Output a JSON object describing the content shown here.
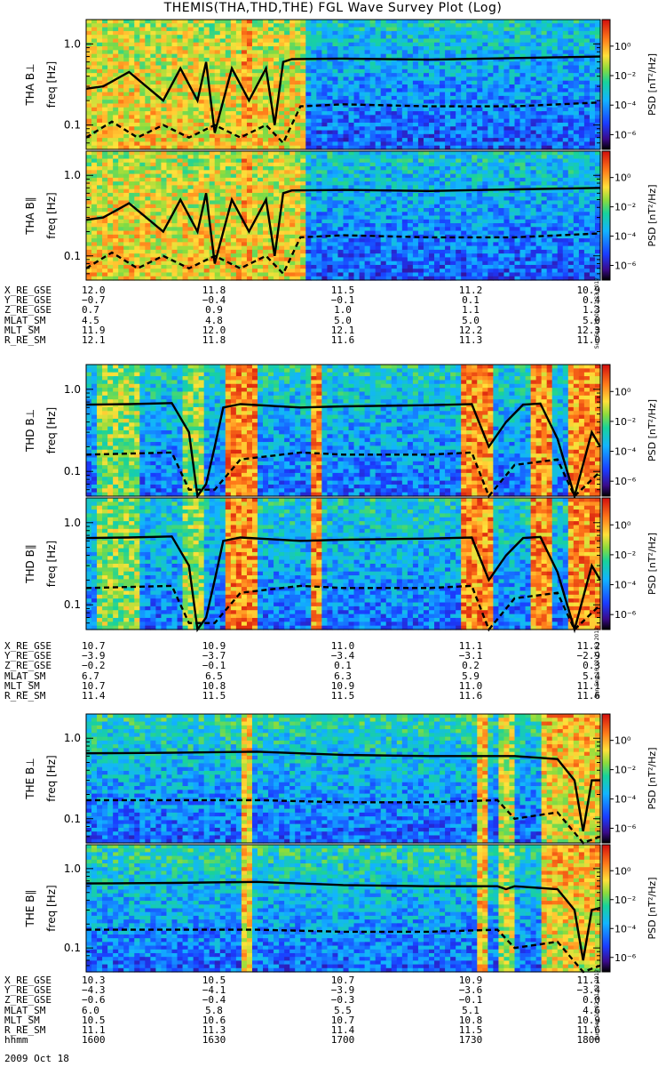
{
  "title": "THEMIS(THA,THD,THE) FGL Wave Survey Plot (Log)",
  "date_label": "2009 Oct 18",
  "colorbar": {
    "label": "PSD [nT²/Hz]",
    "ticks": [
      {
        "exp": 0,
        "text": "10⁰"
      },
      {
        "exp": -2,
        "text": "10⁻²"
      },
      {
        "exp": -4,
        "text": "10⁻⁴"
      },
      {
        "exp": -6,
        "text": "10⁻⁶"
      }
    ],
    "range_log": [
      -7,
      1.8
    ]
  },
  "freq_axis": {
    "label": "freq [Hz]",
    "range": [
      0.05,
      2.0
    ],
    "scale": "log",
    "ticks": [
      "1.0",
      "0.1"
    ]
  },
  "stamp": "Sun Sep 16 02:21:23 2012",
  "panels": [
    {
      "id": "tha-bperp",
      "ylabel": "THA B⊥",
      "noise": 0.8
    },
    {
      "id": "tha-bpar",
      "ylabel": "THA B∥",
      "noise": 0.7
    },
    {
      "id": "thd-bperp",
      "ylabel": "THD B⊥",
      "noise": 0.8
    },
    {
      "id": "thd-bpar",
      "ylabel": "THD B∥",
      "noise": 0.7
    },
    {
      "id": "the-bperp",
      "ylabel": "THE B⊥",
      "noise": 0.8
    },
    {
      "id": "the-bpar",
      "ylabel": "THE B∥",
      "noise": 0.7
    }
  ],
  "ephemeris": [
    {
      "id": "tha",
      "rows": [
        {
          "label": "X_RE_GSE",
          "values": [
            "12.0",
            "11.8",
            "11.5",
            "11.2",
            "10.9"
          ]
        },
        {
          "label": "Y_RE_GSE",
          "values": [
            "−0.7",
            "−0.4",
            "−0.1",
            "0.1",
            "0.4"
          ]
        },
        {
          "label": "Z_RE_GSE",
          "values": [
            "0.7",
            "0.9",
            "1.0",
            "1.1",
            "1.3"
          ]
        },
        {
          "label": "MLAT_SM",
          "values": [
            "4.5",
            "4.8",
            "5.0",
            "5.0",
            "5.0"
          ]
        },
        {
          "label": "MLT_SM",
          "values": [
            "11.9",
            "12.0",
            "12.1",
            "12.2",
            "12.3"
          ]
        },
        {
          "label": "R_RE_SM",
          "values": [
            "12.1",
            "11.8",
            "11.6",
            "11.3",
            "11.0"
          ]
        }
      ]
    },
    {
      "id": "thd",
      "rows": [
        {
          "label": "X_RE_GSE",
          "values": [
            "10.7",
            "10.9",
            "11.0",
            "11.1",
            "11.2"
          ]
        },
        {
          "label": "Y_RE_GSE",
          "values": [
            "−3.9",
            "−3.7",
            "−3.4",
            "−3.1",
            "−2.9"
          ]
        },
        {
          "label": "Z_RE_GSE",
          "values": [
            "−0.2",
            "−0.1",
            "0.1",
            "0.2",
            "0.3"
          ]
        },
        {
          "label": "MLAT_SM",
          "values": [
            "6.7",
            "6.5",
            "6.3",
            "5.9",
            "5.4"
          ]
        },
        {
          "label": "MLT_SM",
          "values": [
            "10.7",
            "10.8",
            "10.9",
            "11.0",
            "11.1"
          ]
        },
        {
          "label": "R_RE_SM",
          "values": [
            "11.4",
            "11.5",
            "11.5",
            "11.6",
            "11.6"
          ]
        }
      ]
    },
    {
      "id": "the",
      "rows": [
        {
          "label": "X_RE_GSE",
          "values": [
            "10.3",
            "10.5",
            "10.7",
            "10.9",
            "11.1"
          ]
        },
        {
          "label": "Y_RE_GSE",
          "values": [
            "−4.3",
            "−4.1",
            "−3.9",
            "−3.6",
            "−3.4"
          ]
        },
        {
          "label": "Z_RE_GSE",
          "values": [
            "−0.6",
            "−0.4",
            "−0.3",
            "−0.1",
            "0.0"
          ]
        },
        {
          "label": "MLAT_SM",
          "values": [
            "6.0",
            "5.8",
            "5.5",
            "5.1",
            "4.6"
          ]
        },
        {
          "label": "MLT_SM",
          "values": [
            "10.5",
            "10.6",
            "10.7",
            "10.8",
            "10.9"
          ]
        },
        {
          "label": "R_RE_SM",
          "values": [
            "11.1",
            "11.3",
            "11.4",
            "11.5",
            "11.6"
          ]
        },
        {
          "label": "hhmm",
          "values": [
            "1600",
            "1630",
            "1700",
            "1730",
            "1800"
          ]
        }
      ]
    }
  ],
  "chart_data": {
    "type": "heatmap",
    "title": "THEMIS(THA,THD,THE) FGL Wave Survey Plot (Log)",
    "x_axis": {
      "label": "hhmm",
      "ticks": [
        "1600",
        "1630",
        "1700",
        "1730",
        "1800"
      ],
      "range": [
        "1600",
        "1800"
      ]
    },
    "y_axis": {
      "label": "freq [Hz]",
      "scale": "log",
      "range": [
        0.05,
        2.0
      ]
    },
    "z_axis": {
      "label": "PSD [nT²/Hz]",
      "scale": "log",
      "range": [
        1e-07,
        60
      ]
    },
    "lines": {
      "solid": "upper frequency curve (~0.6–0.7 Hz quiet levels)",
      "dashed": "lower frequency curve (~0.15–0.2 Hz quiet levels)"
    },
    "panels": [
      {
        "name": "THA B⊥",
        "series": [
          {
            "type": "solid",
            "x": [
              1600,
              1604,
              1610,
              1618,
              1622,
              1626,
              1628,
              1630,
              1634,
              1638,
              1642,
              1644,
              1646,
              1648,
              1660,
              1700,
              1720,
              1740,
              1800
            ],
            "y": [
              0.28,
              0.3,
              0.45,
              0.2,
              0.5,
              0.2,
              0.6,
              0.08,
              0.5,
              0.2,
              0.5,
              0.1,
              0.6,
              0.65,
              0.66,
              0.66,
              0.64,
              0.67,
              0.7
            ]
          },
          {
            "type": "dashed",
            "x": [
              1600,
              1606,
              1612,
              1618,
              1624,
              1630,
              1636,
              1642,
              1646,
              1650,
              1700,
              1720,
              1740,
              1800
            ],
            "y": [
              0.07,
              0.11,
              0.07,
              0.1,
              0.07,
              0.1,
              0.07,
              0.1,
              0.06,
              0.17,
              0.18,
              0.17,
              0.17,
              0.19
            ]
          }
        ]
      },
      {
        "name": "THA B∥",
        "series": [
          {
            "type": "solid",
            "x": [
              1600,
              1604,
              1610,
              1618,
              1622,
              1626,
              1628,
              1630,
              1634,
              1638,
              1642,
              1644,
              1646,
              1648,
              1660,
              1700,
              1720,
              1740,
              1800
            ],
            "y": [
              0.28,
              0.3,
              0.45,
              0.2,
              0.5,
              0.2,
              0.6,
              0.08,
              0.5,
              0.2,
              0.5,
              0.1,
              0.6,
              0.65,
              0.66,
              0.66,
              0.64,
              0.67,
              0.7
            ]
          },
          {
            "type": "dashed",
            "x": [
              1600,
              1606,
              1612,
              1618,
              1624,
              1630,
              1636,
              1642,
              1646,
              1650,
              1700,
              1720,
              1740,
              1800
            ],
            "y": [
              0.07,
              0.11,
              0.07,
              0.1,
              0.07,
              0.1,
              0.07,
              0.1,
              0.06,
              0.17,
              0.18,
              0.17,
              0.17,
              0.19
            ]
          }
        ]
      },
      {
        "name": "THD B⊥",
        "series": [
          {
            "type": "solid",
            "x": [
              1600,
              1610,
              1620,
              1624,
              1626,
              1628,
              1630,
              1632,
              1636,
              1650,
              1700,
              1720,
              1730,
              1734,
              1738,
              1742,
              1746,
              1750,
              1754,
              1758,
              1800
            ],
            "y": [
              0.65,
              0.66,
              0.68,
              0.3,
              0.05,
              0.07,
              0.2,
              0.6,
              0.66,
              0.6,
              0.62,
              0.64,
              0.66,
              0.2,
              0.4,
              0.65,
              0.67,
              0.25,
              0.05,
              0.3,
              0.2
            ]
          },
          {
            "type": "dashed",
            "x": [
              1600,
              1620,
              1624,
              1630,
              1636,
              1650,
              1700,
              1720,
              1730,
              1734,
              1740,
              1750,
              1754,
              1800
            ],
            "y": [
              0.16,
              0.17,
              0.06,
              0.06,
              0.14,
              0.17,
              0.16,
              0.16,
              0.17,
              0.05,
              0.12,
              0.14,
              0.05,
              0.1
            ]
          }
        ]
      },
      {
        "name": "THD B∥",
        "series": [
          {
            "type": "solid",
            "x": [
              1600,
              1610,
              1620,
              1624,
              1626,
              1628,
              1630,
              1632,
              1636,
              1650,
              1700,
              1720,
              1730,
              1734,
              1738,
              1742,
              1746,
              1750,
              1754,
              1758,
              1800
            ],
            "y": [
              0.65,
              0.66,
              0.68,
              0.3,
              0.05,
              0.07,
              0.2,
              0.6,
              0.66,
              0.6,
              0.62,
              0.64,
              0.66,
              0.2,
              0.4,
              0.65,
              0.67,
              0.25,
              0.05,
              0.3,
              0.2
            ]
          },
          {
            "type": "dashed",
            "x": [
              1600,
              1620,
              1624,
              1630,
              1636,
              1650,
              1700,
              1720,
              1730,
              1734,
              1740,
              1750,
              1754,
              1800
            ],
            "y": [
              0.16,
              0.17,
              0.06,
              0.06,
              0.14,
              0.17,
              0.16,
              0.16,
              0.17,
              0.05,
              0.12,
              0.14,
              0.05,
              0.1
            ]
          }
        ]
      },
      {
        "name": "THE B⊥",
        "series": [
          {
            "type": "solid",
            "x": [
              1600,
              1620,
              1640,
              1700,
              1720,
              1740,
              1750,
              1754,
              1756,
              1758,
              1800
            ],
            "y": [
              0.65,
              0.66,
              0.68,
              0.62,
              0.6,
              0.6,
              0.55,
              0.3,
              0.07,
              0.3,
              0.3
            ]
          },
          {
            "type": "dashed",
            "x": [
              1600,
              1620,
              1640,
              1700,
              1720,
              1736,
              1740,
              1750,
              1756,
              1800
            ],
            "y": [
              0.17,
              0.17,
              0.17,
              0.16,
              0.16,
              0.17,
              0.1,
              0.12,
              0.05,
              0.06
            ]
          }
        ]
      },
      {
        "name": "THE B∥",
        "series": [
          {
            "type": "solid",
            "x": [
              1600,
              1620,
              1640,
              1700,
              1720,
              1736,
              1738,
              1740,
              1750,
              1754,
              1756,
              1758,
              1800
            ],
            "y": [
              0.65,
              0.66,
              0.68,
              0.62,
              0.6,
              0.6,
              0.55,
              0.6,
              0.55,
              0.3,
              0.07,
              0.3,
              0.32
            ]
          },
          {
            "type": "dashed",
            "x": [
              1600,
              1620,
              1640,
              1700,
              1720,
              1736,
              1740,
              1750,
              1756,
              1800
            ],
            "y": [
              0.17,
              0.17,
              0.17,
              0.16,
              0.16,
              0.17,
              0.1,
              0.12,
              0.05,
              0.06
            ]
          }
        ]
      }
    ]
  }
}
